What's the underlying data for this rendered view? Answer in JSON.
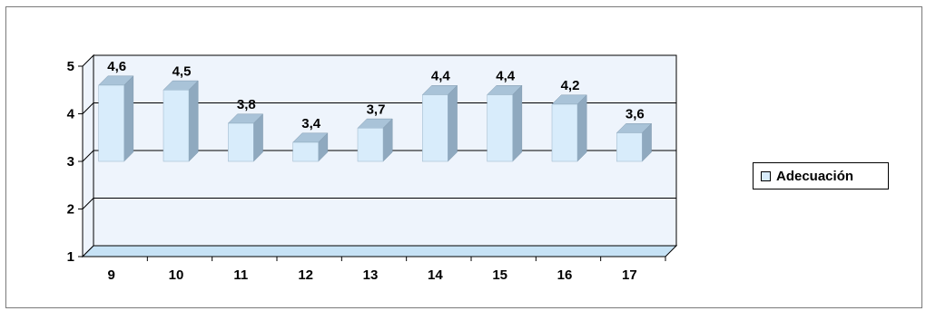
{
  "chart_data": {
    "type": "bar",
    "categories": [
      "9",
      "10",
      "11",
      "12",
      "13",
      "14",
      "15",
      "16",
      "17"
    ],
    "series": [
      {
        "name": "Adecuación",
        "values": [
          4.6,
          4.5,
          3.8,
          3.4,
          3.7,
          4.4,
          4.4,
          4.2,
          3.6
        ]
      }
    ],
    "data_labels": [
      "4,6",
      "4,5",
      "3,8",
      "3,4",
      "3,7",
      "4,4",
      "4,4",
      "4,2",
      "3,6"
    ],
    "y_ticks": [
      "1",
      "2",
      "3",
      "4",
      "5"
    ],
    "ylim": [
      1,
      5
    ],
    "bar_base": 3,
    "grid": true,
    "legend_position": "right",
    "style": "3d-column",
    "colors": {
      "bar_front": "#d8ecfb",
      "bar_top": "#a9c3d8",
      "bar_side": "#8fa9bf",
      "wall": "#eef4fc",
      "floor": "#c6e2f5"
    }
  },
  "legend": {
    "label": "Adecuación"
  }
}
